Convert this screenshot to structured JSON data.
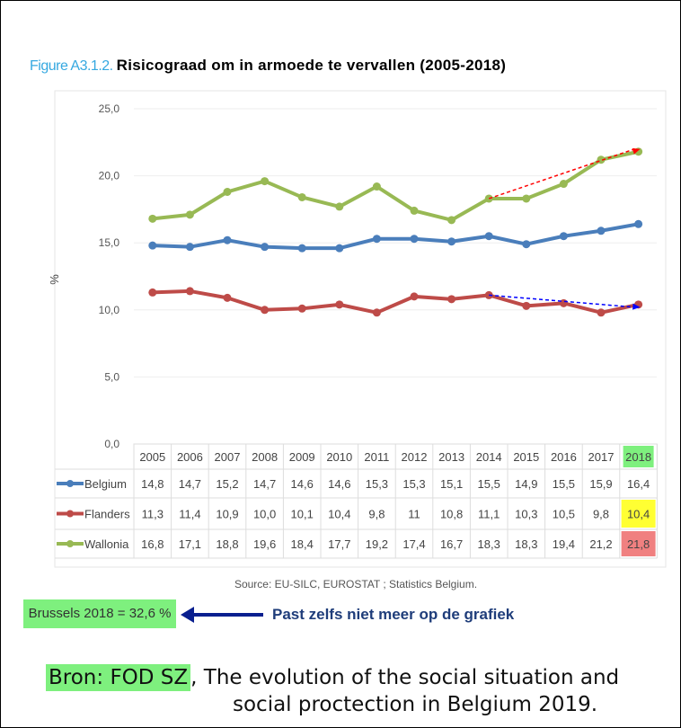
{
  "figure_label": "Figure A3.1.2.",
  "title": "Risicograad om in armoede te vervallen (2005-2018)",
  "source": "Source: EU-SILC, EUROSTAT ; Statistics Belgium.",
  "brussels_note": "Brussels 2018 = 32,6 %",
  "arrow_note": "Past zelfs niet meer op de grafiek",
  "bron_highlight": "Bron: FOD SZ",
  "bron_line1": ", The evolution of the social situation and",
  "bron_line2": "social proctection in Belgium 2019.",
  "chart_data": {
    "type": "line",
    "ylabel": "%",
    "ylim": [
      0,
      25
    ],
    "yticks": [
      "0,0",
      "5,0",
      "10,0",
      "15,0",
      "20,0",
      "25,0"
    ],
    "categories": [
      "2005",
      "2006",
      "2007",
      "2008",
      "2009",
      "2010",
      "2011",
      "2012",
      "2013",
      "2014",
      "2015",
      "2016",
      "2017",
      "2018"
    ],
    "series": [
      {
        "name": "Belgium",
        "color": "#4a7ebb",
        "values": [
          14.8,
          14.7,
          15.2,
          14.7,
          14.6,
          14.6,
          15.3,
          15.3,
          15.1,
          15.5,
          14.9,
          15.5,
          15.9,
          16.4
        ],
        "labels": [
          "14,8",
          "14,7",
          "15,2",
          "14,7",
          "14,6",
          "14,6",
          "15,3",
          "15,3",
          "15,1",
          "15,5",
          "14,9",
          "15,5",
          "15,9",
          "16,4"
        ]
      },
      {
        "name": "Flanders",
        "color": "#be4b48",
        "values": [
          11.3,
          11.4,
          10.9,
          10.0,
          10.1,
          10.4,
          9.8,
          11,
          10.8,
          11.1,
          10.3,
          10.5,
          9.8,
          10.4
        ],
        "labels": [
          "11,3",
          "11,4",
          "10,9",
          "10,0",
          "10,1",
          "10,4",
          "9,8",
          "11",
          "10,8",
          "11,1",
          "10,3",
          "10,5",
          "9,8",
          "10,4"
        ]
      },
      {
        "name": "Wallonia",
        "color": "#98b954",
        "values": [
          16.8,
          17.1,
          18.8,
          19.6,
          18.4,
          17.7,
          19.2,
          17.4,
          16.7,
          18.3,
          18.3,
          19.4,
          21.2,
          21.8
        ],
        "labels": [
          "16,8",
          "17,1",
          "18,8",
          "19,6",
          "18,4",
          "17,7",
          "19,2",
          "17,4",
          "16,7",
          "18,3",
          "18,3",
          "19,4",
          "21,2",
          "21,8"
        ]
      }
    ],
    "highlights": {
      "header_2018": "#7ef07e",
      "Flanders_2018": "#ffff33",
      "Wallonia_2018": "#f08080"
    },
    "annotations": [
      {
        "type": "dashed-arrow",
        "color": "#ff0000",
        "from": [
          "2014",
          18.3
        ],
        "to": [
          "2018",
          21.8
        ]
      },
      {
        "type": "dashed-arrow",
        "color": "#0000ff",
        "from": [
          "2014",
          11.1
        ],
        "to": [
          "2018",
          10.4
        ]
      }
    ]
  }
}
